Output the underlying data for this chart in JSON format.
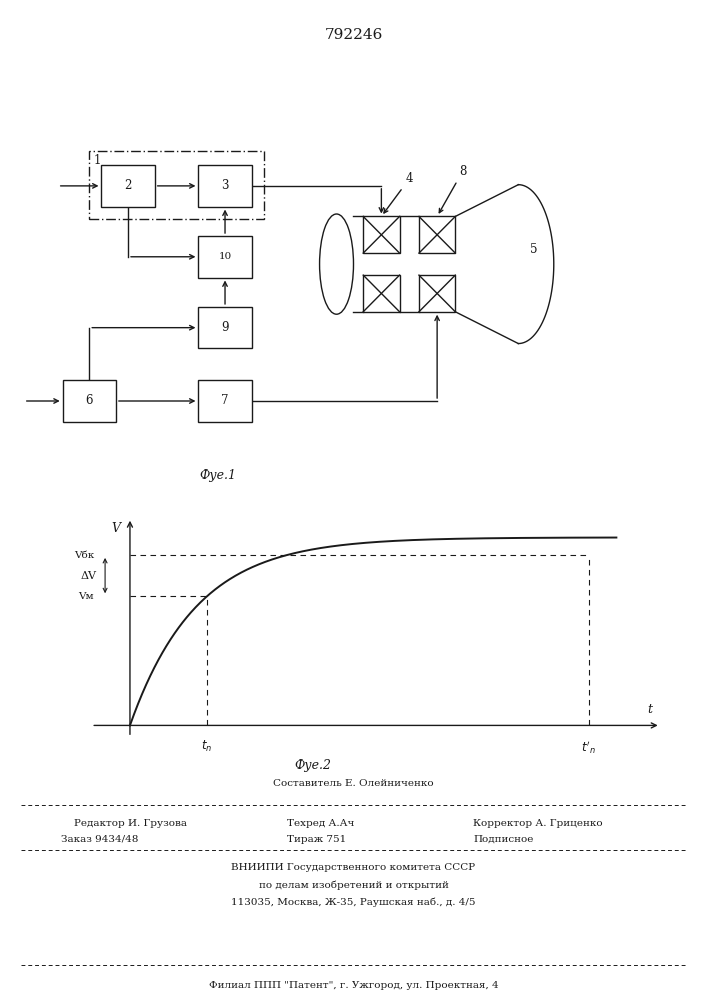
{
  "title": "792246",
  "fig1_caption": "Фуе.1",
  "fig2_caption": "Фуе.2",
  "footer_line1": "Составитель Е. Олейниченко",
  "footer_line2_left": "Редактор И. Грузова",
  "footer_line2_mid": "Техред А.Ач",
  "footer_line2_right": "Корректор А. Гриценко",
  "footer_line3_left": "Заказ 9434/48",
  "footer_line3_mid": "Тираж 751",
  "footer_line3_right": "Подписное",
  "footer_line4": "ВНИИПИ Государственного комитета СССР",
  "footer_line5": "по делам изобретений и открытий",
  "footer_line6": "113035, Москва, Ж-35, Раушская наб., д. 4/5",
  "footer_line7": "Филиал ППП \"Патент\", г. Ужгород, ул. Проектная, 4",
  "bg_color": "#ffffff",
  "line_color": "#1a1a1a"
}
